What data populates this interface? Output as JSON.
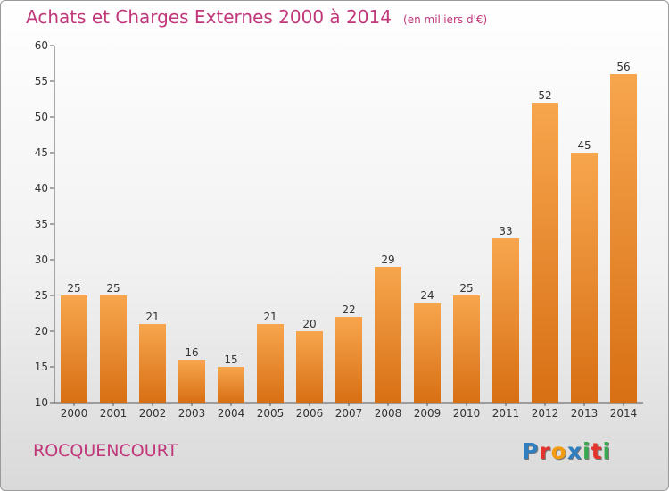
{
  "header": {
    "title": "Achats et Charges Externes 2000 à 2014",
    "subtitle": "(en milliers d'€)"
  },
  "footer": {
    "commune": "ROCQUENCOURT",
    "logo": {
      "text": "Proxiti",
      "letters": [
        {
          "ch": "P",
          "color": "#2f7fc1"
        },
        {
          "ch": "r",
          "color": "#e5322d"
        },
        {
          "ch": "o",
          "color": "#f39c12"
        },
        {
          "ch": "x",
          "color": "#2f7fc1"
        },
        {
          "ch": "i",
          "color": "#3aa84f"
        },
        {
          "ch": "t",
          "color": "#e5322d"
        },
        {
          "ch": "i",
          "color": "#3aa84f"
        }
      ]
    }
  },
  "chart_data": {
    "type": "bar",
    "categories": [
      "2000",
      "2001",
      "2002",
      "2003",
      "2004",
      "2005",
      "2006",
      "2007",
      "2008",
      "2009",
      "2010",
      "2011",
      "2012",
      "2013",
      "2014"
    ],
    "values": [
      25,
      25,
      21,
      16,
      15,
      21,
      20,
      22,
      29,
      24,
      25,
      33,
      52,
      45,
      56
    ],
    "ylim": [
      10,
      60
    ],
    "yticks": [
      10,
      15,
      20,
      25,
      30,
      35,
      40,
      45,
      50,
      55,
      60
    ],
    "grid": false,
    "colors": {
      "bar_top": "#f7a64e",
      "bar_bottom": "#d86f14",
      "axis": "#555555",
      "text": "#333333"
    }
  }
}
